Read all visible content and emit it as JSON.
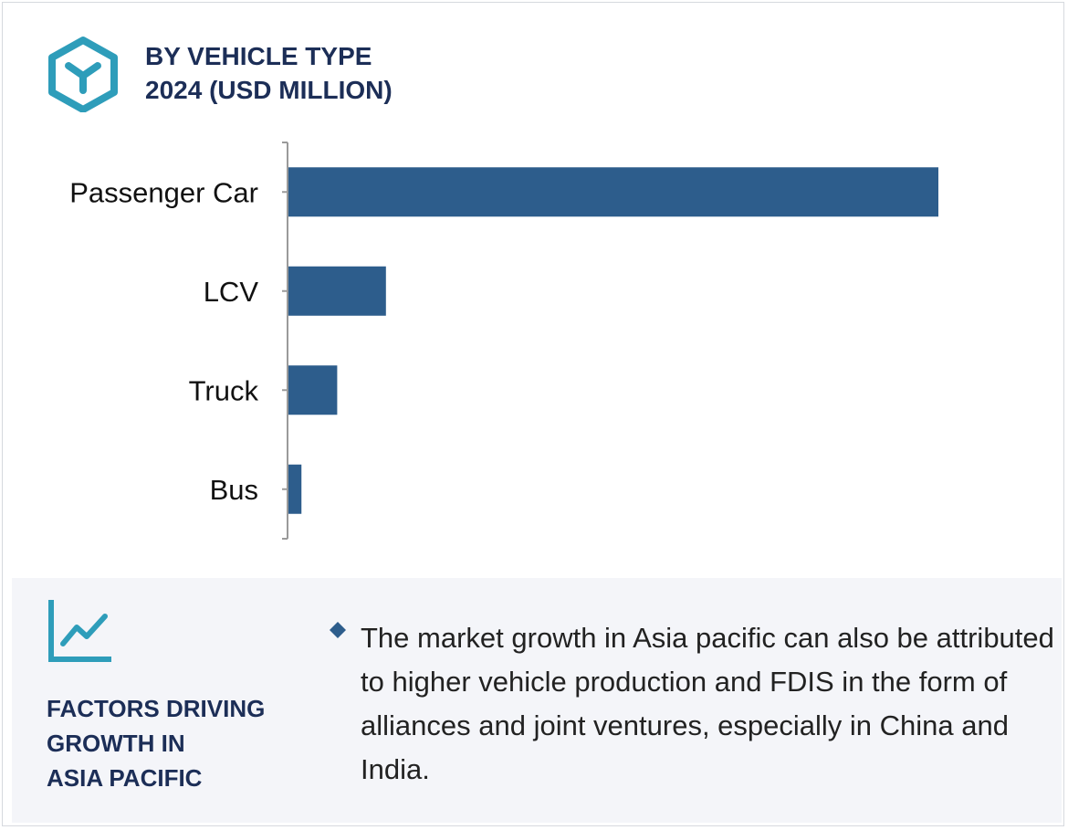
{
  "header": {
    "title_line1": "BY VEHICLE TYPE",
    "title_line2": "2024 (USD MILLION)"
  },
  "colors": {
    "bar": "#2d5d8c",
    "accent": "#2e9dba",
    "title": "#1c2e57",
    "panel": "#f4f5f9"
  },
  "chart_data": {
    "type": "bar",
    "orientation": "horizontal",
    "title": "BY VEHICLE TYPE 2024 (USD MILLION)",
    "categories": [
      "Passenger Car",
      "LCV",
      "Truck",
      "Bus"
    ],
    "values": [
      100,
      15,
      7.5,
      2
    ],
    "xlim": [
      0,
      100
    ],
    "grid": false,
    "legend": "none"
  },
  "factors": {
    "icon": "trend-line-chart-icon",
    "title_line1": "FACTORS DRIVING",
    "title_line2": "GROWTH IN",
    "title_line3": "ASIA PACIFIC",
    "bullet_icon": "diamond-bullet-icon",
    "text": "The market growth in Asia pacific can also be attributed to higher vehicle production and FDIS in the form of alliances and joint ventures, especially in China and India."
  }
}
